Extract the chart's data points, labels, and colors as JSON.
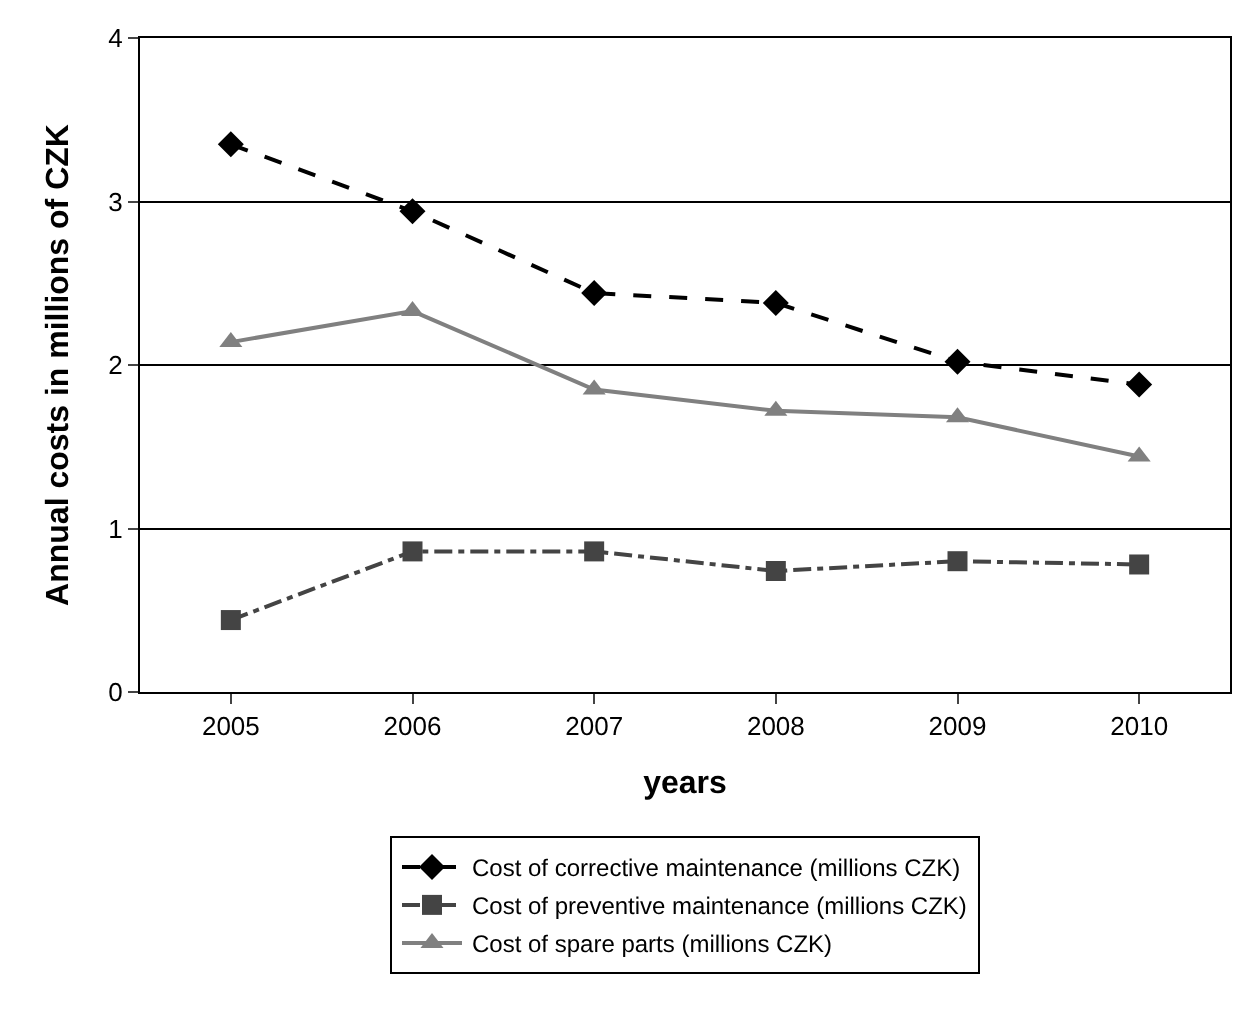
{
  "chart_data": {
    "type": "line",
    "categories": [
      "2005",
      "2006",
      "2007",
      "2008",
      "2009",
      "2010"
    ],
    "xlabel": "years",
    "ylabel": "Annual costs in millions of CZK",
    "ylim": [
      0,
      4
    ],
    "yticks": [
      0,
      1,
      2,
      3,
      4
    ],
    "grid": "y",
    "legend": "bottom",
    "series": [
      {
        "name": "Cost of corrective maintenance (millions CZK)",
        "color": "#000000",
        "marker": "diamond",
        "line_style": "dashed",
        "values": [
          3.35,
          2.94,
          2.44,
          2.38,
          2.02,
          1.88
        ]
      },
      {
        "name": "Cost of preventive maintenance (millions CZK)",
        "color": "#444444",
        "marker": "square",
        "line_style": "dashdot",
        "values": [
          0.44,
          0.86,
          0.86,
          0.74,
          0.8,
          0.78
        ]
      },
      {
        "name": "Cost of spare parts (millions CZK)",
        "color": "#808080",
        "marker": "triangle",
        "line_style": "solid",
        "values": [
          2.14,
          2.33,
          1.85,
          1.72,
          1.68,
          1.44
        ]
      }
    ]
  }
}
